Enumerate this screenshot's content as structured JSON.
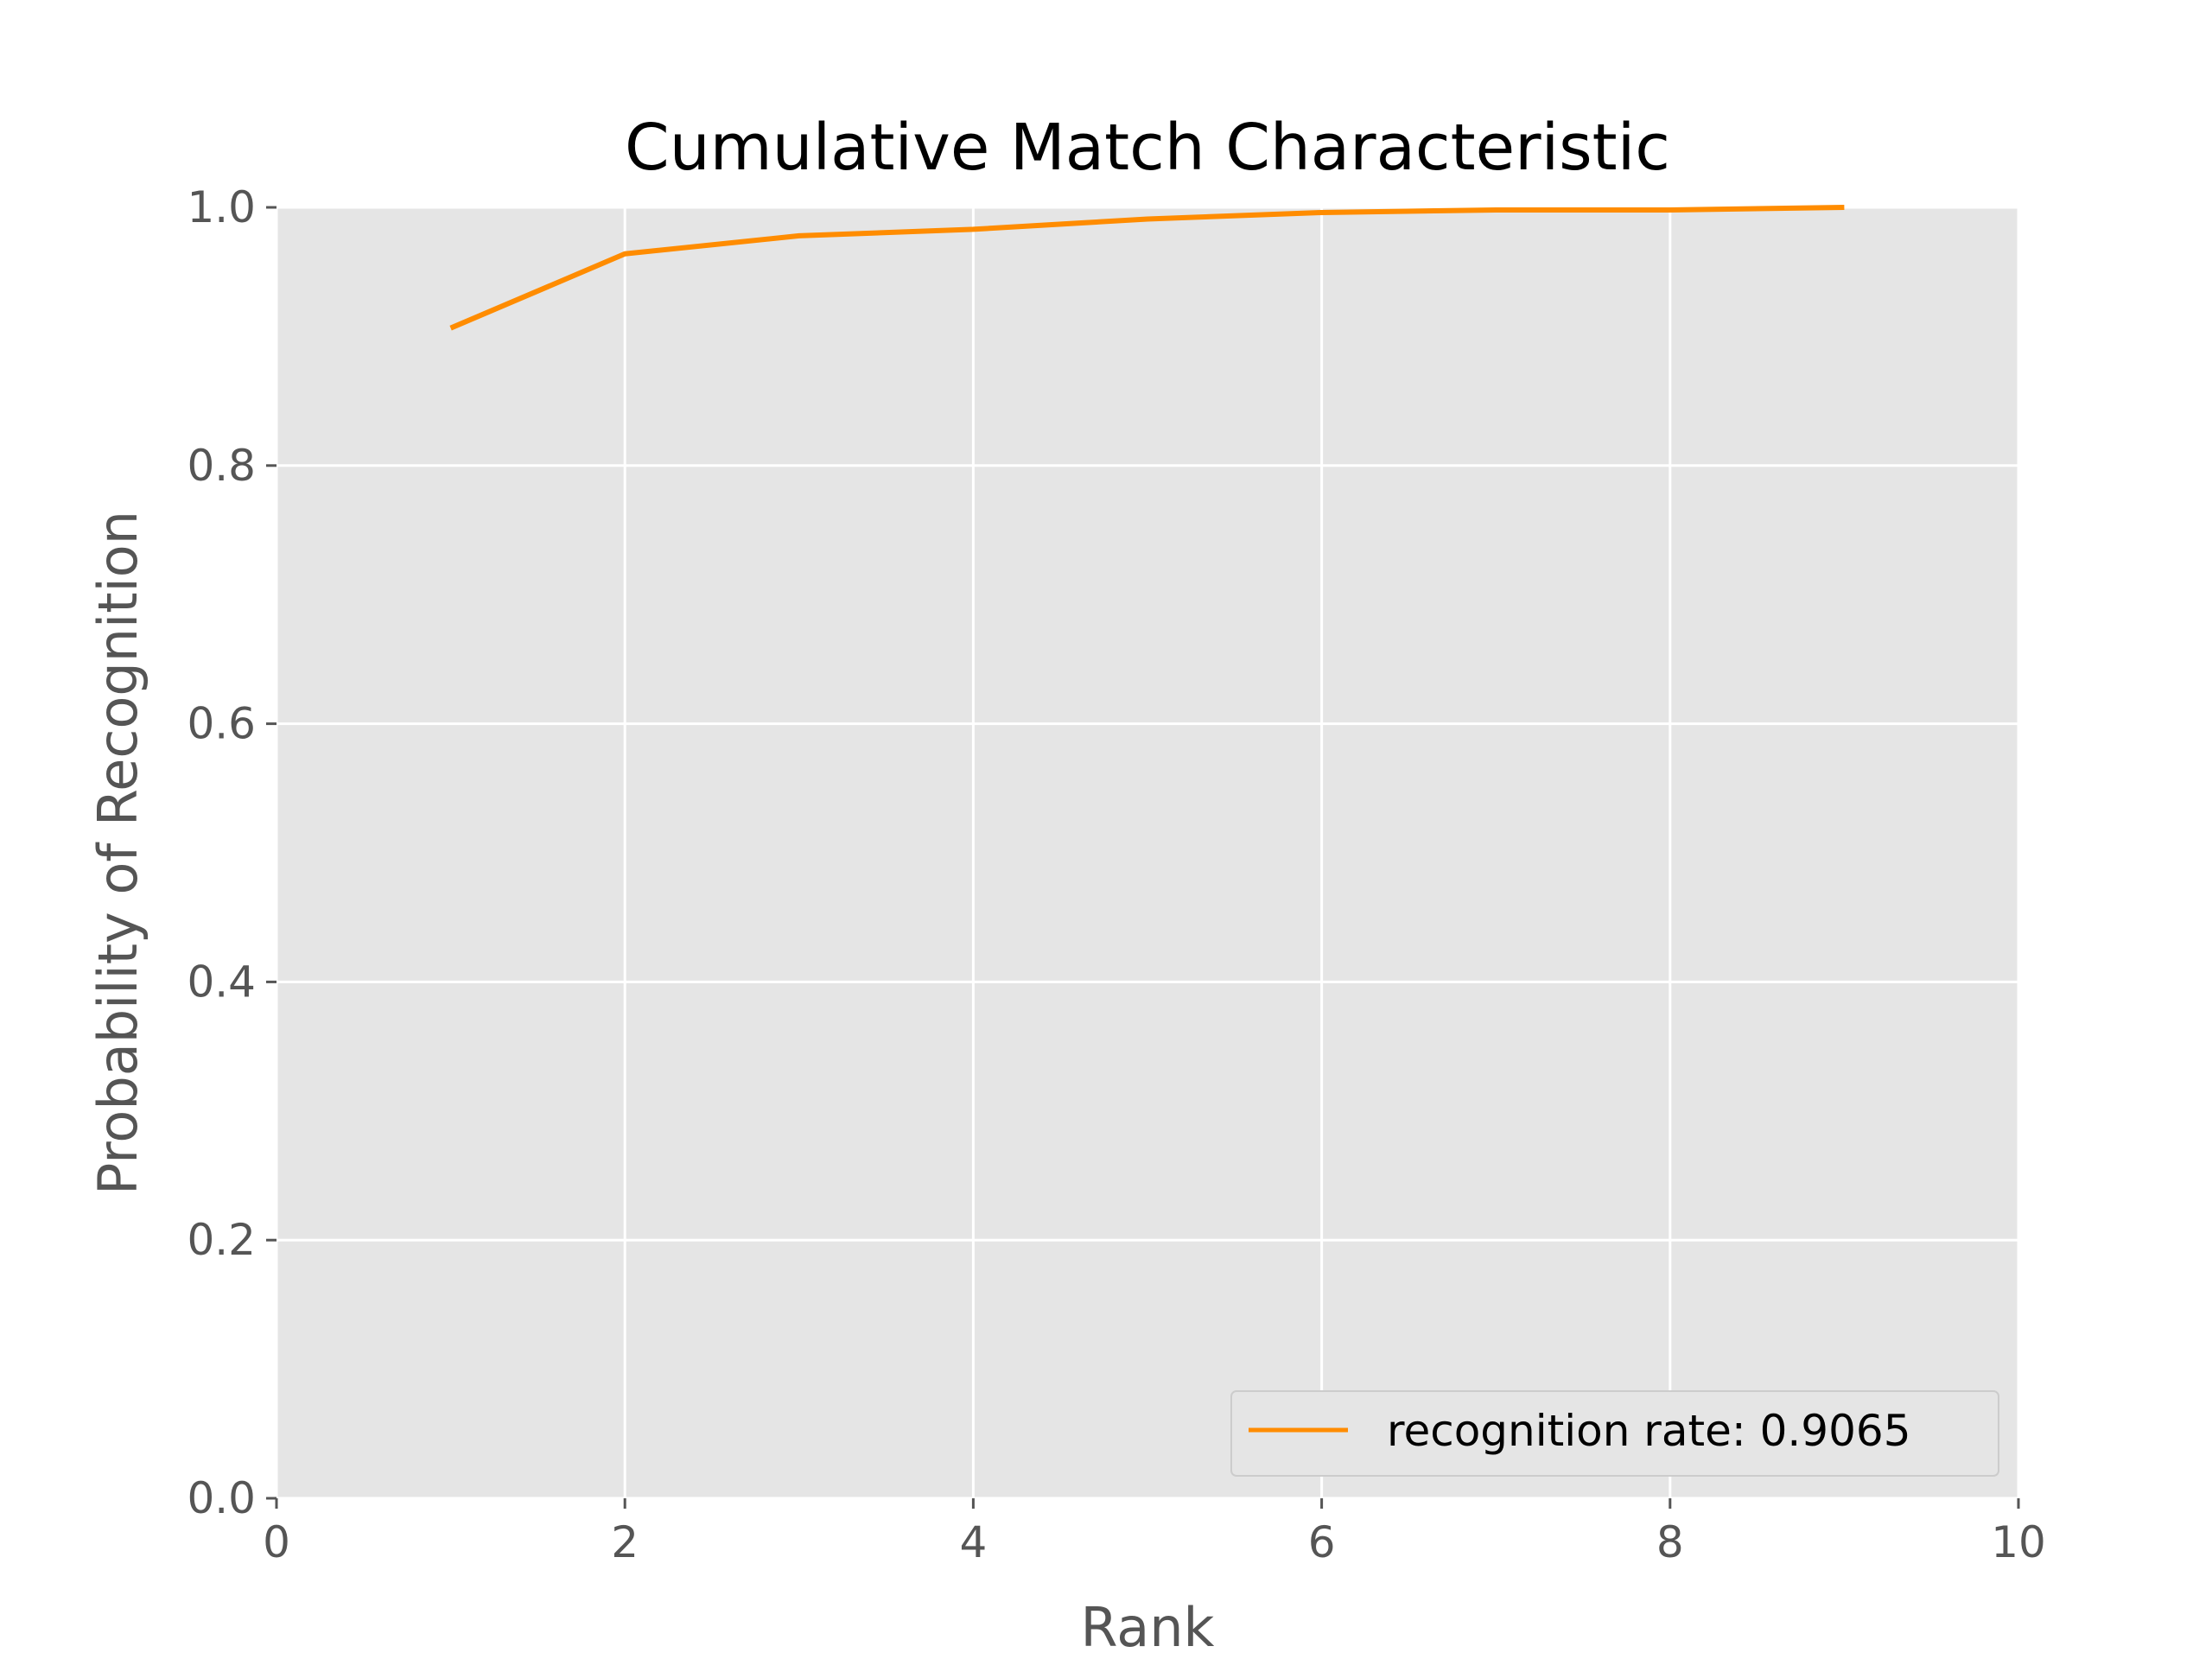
{
  "chart_data": {
    "type": "line",
    "title": "Cumulative Match Characteristic",
    "xlabel": "Rank",
    "ylabel": "Probability of Recognition",
    "xlim": [
      0,
      10
    ],
    "ylim": [
      0.0,
      1.0
    ],
    "xticks": [
      "0",
      "2",
      "4",
      "6",
      "8",
      "10"
    ],
    "yticks": [
      "0.0",
      "0.2",
      "0.4",
      "0.6",
      "0.8",
      "1.0"
    ],
    "grid": true,
    "legend_position": "lower-right",
    "series": [
      {
        "name": "recognition rate: 0.9065",
        "color": "#ff8c00",
        "x": [
          1,
          2,
          3,
          4,
          5,
          6,
          7,
          8,
          9
        ],
        "y": [
          0.9065,
          0.964,
          0.978,
          0.983,
          0.991,
          0.996,
          0.998,
          0.998,
          1.0
        ]
      }
    ],
    "colors": {
      "plot_background": "#e5e5e5",
      "grid": "#ffffff",
      "text": "#555555"
    }
  }
}
